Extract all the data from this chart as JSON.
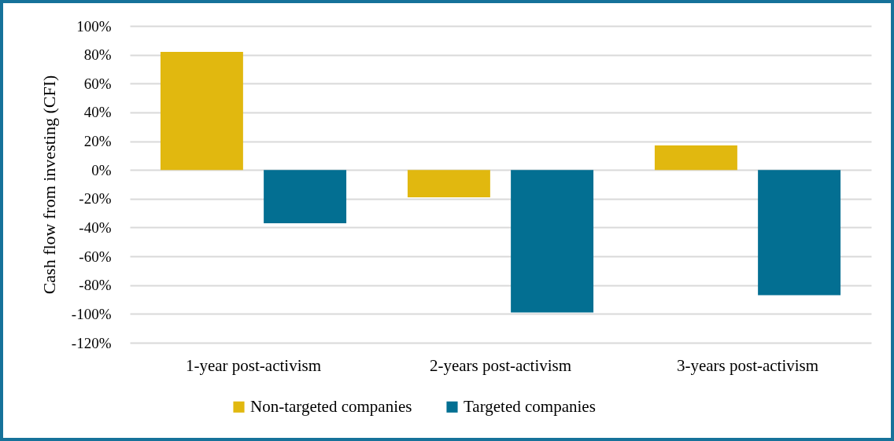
{
  "chart_data": {
    "type": "bar",
    "categories": [
      "1-year post-activism",
      "2-years post-activism",
      "3-years post-activism"
    ],
    "series": [
      {
        "name": "Non-targeted companies",
        "color": "#e1b80f",
        "values": [
          82,
          -19,
          17
        ]
      },
      {
        "name": "Targeted companies",
        "color": "#036f92",
        "values": [
          -37,
          -99,
          -87
        ]
      }
    ],
    "ylabel": "Cash flow from investing (CFI)",
    "ylim": [
      -120,
      100
    ],
    "yticks": [
      {
        "value": -120,
        "label": "-120%"
      },
      {
        "value": -100,
        "label": "-100%"
      },
      {
        "value": -80,
        "label": "-80%"
      },
      {
        "value": -60,
        "label": "-60%"
      },
      {
        "value": -40,
        "label": "-40%"
      },
      {
        "value": -20,
        "label": "-20%"
      },
      {
        "value": 0,
        "label": "0%"
      },
      {
        "value": 20,
        "label": "20%"
      },
      {
        "value": 40,
        "label": "40%"
      },
      {
        "value": 60,
        "label": "60%"
      },
      {
        "value": 80,
        "label": "80%"
      },
      {
        "value": 100,
        "label": "100%"
      }
    ],
    "grid": "y",
    "legend": "bottom"
  }
}
